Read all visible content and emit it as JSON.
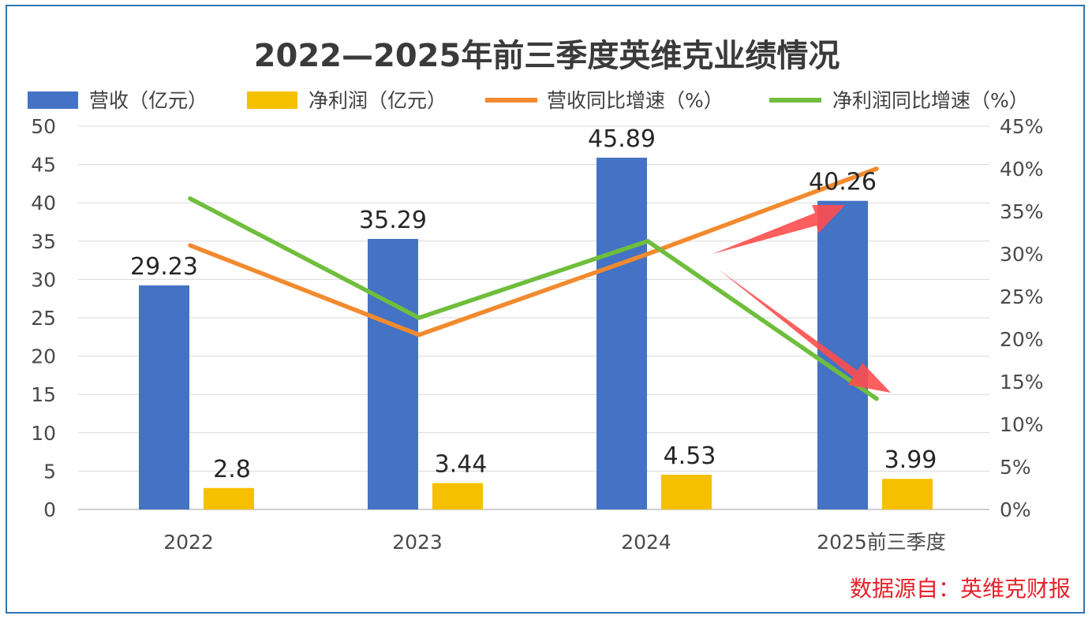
{
  "chart_data": {
    "type": "bar",
    "title": "2022—2025年前三季度英维克业绩情况",
    "categories": [
      "2022",
      "2023",
      "2024",
      "2025前三季度"
    ],
    "series": [
      {
        "name": "营收（亿元）",
        "kind": "bar",
        "axis": "left",
        "color": "#4472c4",
        "values": [
          29.23,
          35.29,
          45.89,
          40.26
        ],
        "labels": [
          "29.23",
          "35.29",
          "45.89",
          "40.26"
        ]
      },
      {
        "name": "净利润（亿元）",
        "kind": "bar",
        "axis": "left",
        "color": "#f5c000",
        "values": [
          2.8,
          3.44,
          4.53,
          3.99
        ],
        "labels": [
          "2.8",
          "3.44",
          "4.53",
          "3.99"
        ]
      },
      {
        "name": "营收同比增速（%）",
        "kind": "line",
        "axis": "right",
        "color": "#f28a2e",
        "values": [
          31,
          20.5,
          30,
          40
        ]
      },
      {
        "name": "净利润同比增速（%）",
        "kind": "line",
        "axis": "right",
        "color": "#6fbe3c",
        "values": [
          36.5,
          22.5,
          31.5,
          13
        ]
      }
    ],
    "left_axis": {
      "ylim": [
        0,
        50
      ],
      "ticks": [
        "0",
        "5",
        "10",
        "15",
        "20",
        "25",
        "30",
        "35",
        "40",
        "45",
        "50"
      ]
    },
    "right_axis": {
      "ylim": [
        0,
        45
      ],
      "ticks": [
        "0%",
        "5%",
        "10%",
        "15%",
        "20%",
        "25%",
        "30%",
        "35%",
        "40%",
        "45%"
      ]
    },
    "grid": true,
    "legend_position": "top",
    "annotations": [
      {
        "type": "arrow",
        "direction": "up",
        "color": "#ff4d4d",
        "points_to": "营收同比增速（%）"
      },
      {
        "type": "arrow",
        "direction": "down",
        "color": "#ff4d4d",
        "points_to": "净利润同比增速（%）"
      }
    ],
    "source": "数据源自：英维克财报"
  }
}
